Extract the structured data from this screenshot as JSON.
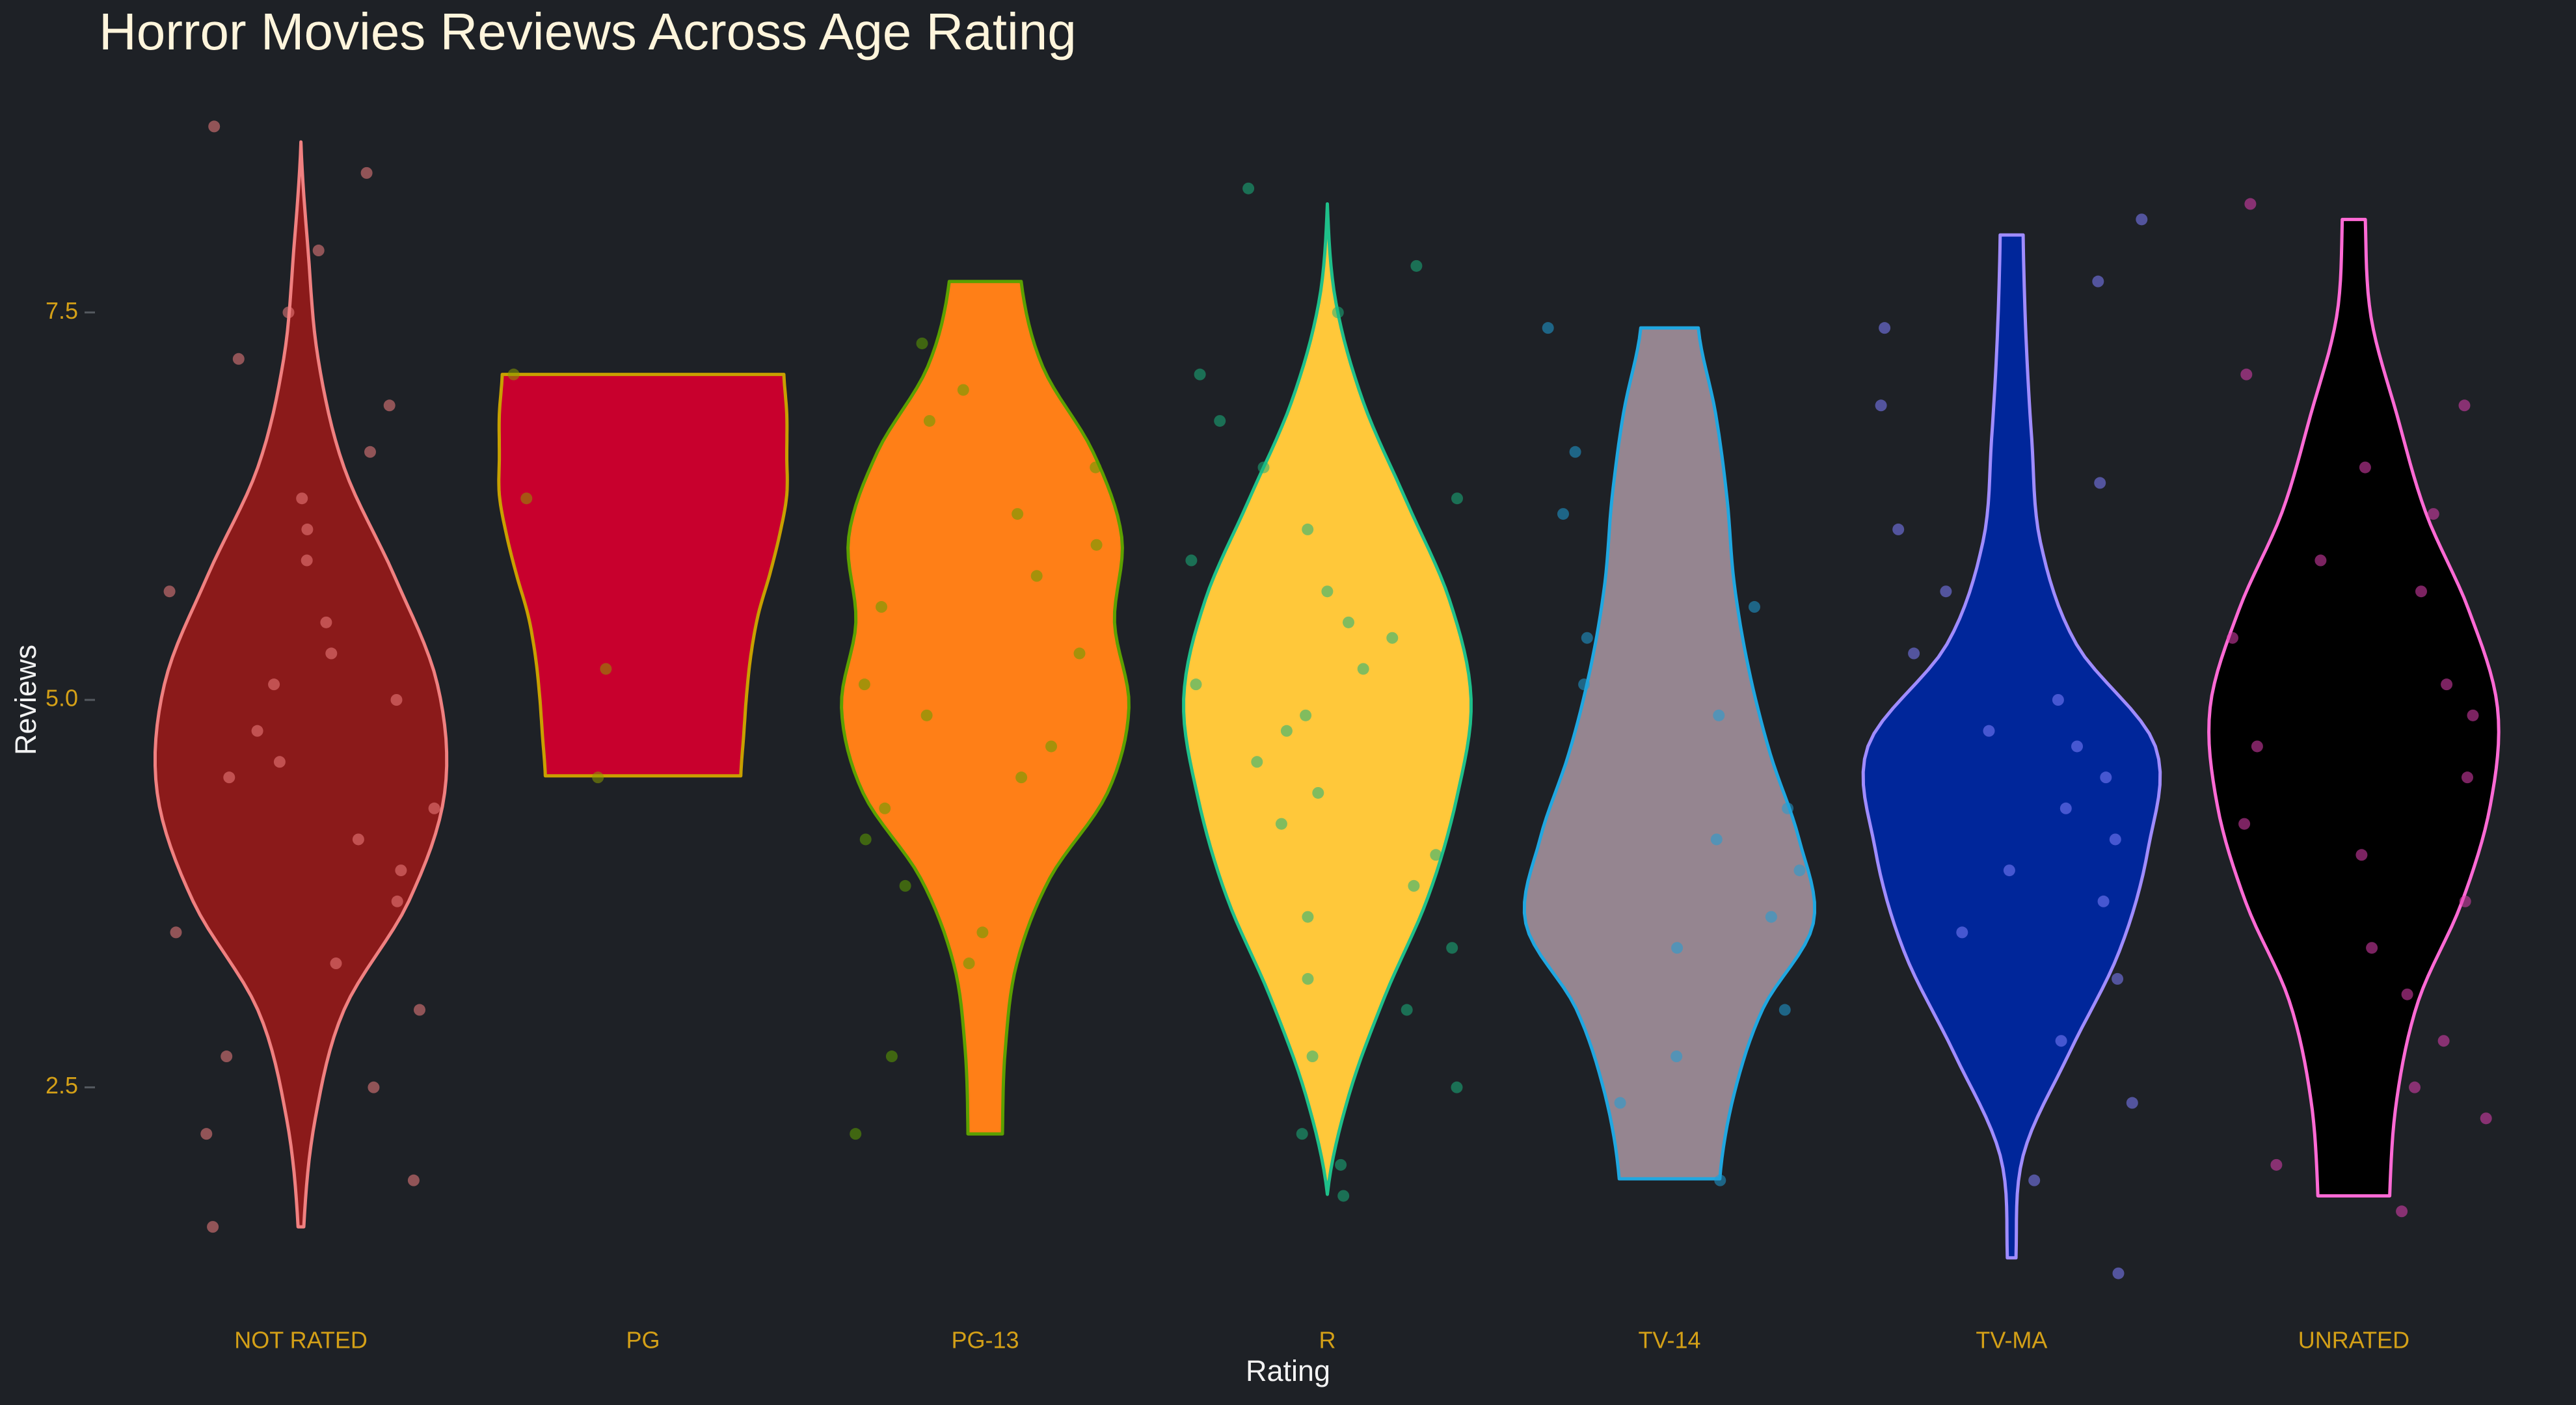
{
  "chart_data": {
    "type": "violin",
    "title": "Horror Movies Reviews Across Age Rating",
    "x_label": "Rating",
    "y_label": "Reviews",
    "categories": [
      "NOT RATED",
      "PG",
      "PG-13",
      "R",
      "TV-14",
      "TV-MA",
      "UNRATED"
    ],
    "ylim": [
      0.95,
      9.05
    ],
    "yticks": [
      2.5,
      {
        "value": 5,
        "label": "5.0"
      },
      7.5
    ],
    "grid": false,
    "violins": [
      {
        "min": 1.6,
        "max": 8.6,
        "density": [
          0.02,
          0.1,
          0.3,
          0.75,
          1.0,
          0.95,
          0.65,
          0.3,
          0.12,
          0.05,
          0.0
        ],
        "fill": "#8b1a1a",
        "outline": "#f08080",
        "point_color": "#f08080",
        "points": [
          8.7,
          8.4,
          7.9,
          7.5,
          7.2,
          6.9,
          6.6,
          6.3,
          6.1,
          5.9,
          5.7,
          5.5,
          5.3,
          5.1,
          5.0,
          4.8,
          4.6,
          4.5,
          4.3,
          4.1,
          3.9,
          3.7,
          3.5,
          3.3,
          3.0,
          2.7,
          2.5,
          2.2,
          1.9,
          1.6
        ]
      },
      {
        "min": 4.51,
        "max": 7.1,
        "density": [
          0.68,
          0.7,
          0.72,
          0.75,
          0.8,
          0.88,
          0.95,
          1.0,
          1.0,
          1.0,
          0.98
        ],
        "fill": "#c8002d",
        "outline": "#c8a000",
        "point_color": "#8a9a00",
        "points": [
          7.1,
          6.3,
          5.2,
          4.5
        ]
      },
      {
        "min": 2.2,
        "max": 7.7,
        "density": [
          0.12,
          0.14,
          0.22,
          0.45,
          0.85,
          1.0,
          0.9,
          0.95,
          0.75,
          0.4,
          0.25
        ],
        "fill": "#ff7f17",
        "outline": "#5ca000",
        "point_color": "#5ca000",
        "points": [
          7.3,
          7.0,
          6.8,
          6.5,
          6.2,
          6.0,
          5.8,
          5.6,
          5.3,
          5.1,
          4.9,
          4.7,
          4.5,
          4.3,
          4.1,
          3.8,
          3.5,
          3.3,
          2.7,
          2.2
        ]
      },
      {
        "min": 1.81,
        "max": 8.2,
        "density": [
          0.0,
          0.15,
          0.4,
          0.7,
          0.9,
          1.0,
          0.85,
          0.55,
          0.25,
          0.06,
          0.0
        ],
        "fill": "#ffc83a",
        "outline": "#1fc08a",
        "point_color": "#19b37c",
        "points": [
          8.3,
          7.8,
          7.5,
          7.1,
          6.8,
          6.5,
          6.3,
          6.1,
          5.9,
          5.7,
          5.5,
          5.4,
          5.2,
          5.1,
          4.9,
          4.8,
          4.6,
          4.4,
          4.2,
          4.0,
          3.8,
          3.6,
          3.4,
          3.2,
          3.0,
          2.7,
          2.5,
          2.2,
          2.0,
          1.8
        ]
      },
      {
        "min": 1.91,
        "max": 7.4,
        "density": [
          0.35,
          0.45,
          0.65,
          1.0,
          0.9,
          0.7,
          0.55,
          0.45,
          0.4,
          0.32,
          0.2
        ],
        "fill": "#958590",
        "outline": "#20a7e0",
        "point_color": "#1f9fd6",
        "points": [
          7.4,
          6.6,
          6.2,
          5.6,
          5.4,
          5.1,
          4.9,
          4.3,
          4.1,
          3.9,
          3.6,
          3.4,
          3.0,
          2.7,
          2.4,
          1.9
        ]
      },
      {
        "min": 1.4,
        "max": 8.0,
        "density": [
          0.03,
          0.08,
          0.4,
          0.75,
          0.95,
          1.0,
          0.45,
          0.2,
          0.14,
          0.1,
          0.08
        ],
        "fill": "#00269a",
        "outline": "#a08cff",
        "point_color": "#8080ff",
        "points": [
          8.1,
          7.7,
          7.4,
          6.9,
          6.4,
          6.1,
          5.7,
          5.3,
          5.0,
          4.8,
          4.7,
          4.5,
          4.3,
          4.1,
          3.9,
          3.7,
          3.5,
          3.2,
          2.8,
          2.4,
          1.9,
          1.3
        ]
      },
      {
        "min": 1.8,
        "max": 8.1,
        "density": [
          0.25,
          0.3,
          0.45,
          0.75,
          0.95,
          1.0,
          0.8,
          0.5,
          0.3,
          0.12,
          0.08
        ],
        "fill": "#000000",
        "outline": "#ff6ad5",
        "point_color": "#e040b0",
        "points": [
          8.2,
          7.1,
          6.9,
          6.5,
          6.2,
          5.9,
          5.7,
          5.4,
          5.1,
          4.9,
          4.7,
          4.5,
          4.2,
          4.0,
          3.7,
          3.4,
          3.1,
          2.8,
          2.5,
          2.3,
          2.0,
          1.7
        ]
      }
    ]
  }
}
